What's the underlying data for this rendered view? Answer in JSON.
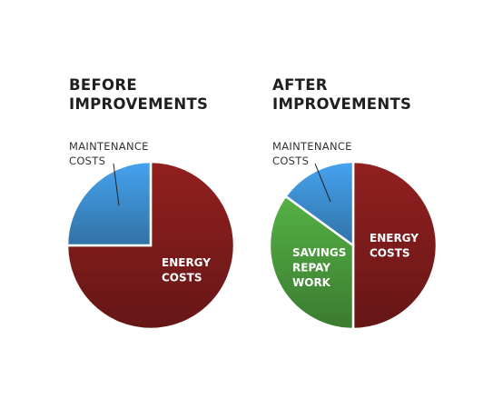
{
  "colors": {
    "energy": "#7f1c1c",
    "maintenance": "#3d8ed0",
    "savings": "#4a9a3c"
  },
  "chart_data": [
    {
      "type": "pie",
      "title": [
        "BEFORE",
        "IMPROVEMENTS"
      ],
      "callout": [
        "MAINTENANCE",
        "COSTS"
      ],
      "slices": [
        {
          "key": "energy",
          "label": [
            "ENERGY",
            "COSTS"
          ],
          "value": 75,
          "color_key": "energy"
        },
        {
          "key": "maintenance",
          "label": [],
          "value": 25,
          "color_key": "maintenance"
        }
      ]
    },
    {
      "type": "pie",
      "title": [
        "AFTER",
        "IMPROVEMENTS"
      ],
      "callout": [
        "MAINTENANCE",
        "COSTS"
      ],
      "slices": [
        {
          "key": "energy",
          "label": [
            "ENERGY",
            "COSTS"
          ],
          "value": 50,
          "color_key": "energy"
        },
        {
          "key": "savings",
          "label": [
            "SAVINGS",
            "REPAY",
            "WORK"
          ],
          "value": 35,
          "color_key": "savings"
        },
        {
          "key": "maintenance",
          "label": [],
          "value": 15,
          "color_key": "maintenance"
        }
      ]
    }
  ]
}
